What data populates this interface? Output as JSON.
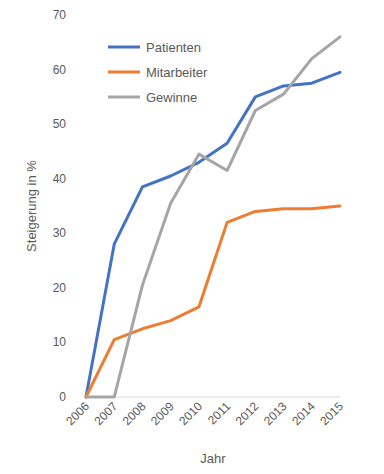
{
  "chart_data": {
    "type": "line",
    "x_label": "Jahr",
    "y_label": "Steigerung in %",
    "categories": [
      "2006",
      "2007",
      "2008",
      "2009",
      "2010",
      "2011",
      "2012",
      "2013",
      "2014",
      "2015"
    ],
    "series": [
      {
        "name": "Patienten",
        "color": "#4472c4",
        "values": [
          0,
          28,
          38.5,
          40.5,
          43,
          46.5,
          55,
          57,
          57.5,
          59.5
        ]
      },
      {
        "name": "Mitarbeiter",
        "color": "#ed7d31",
        "values": [
          0,
          10.5,
          12.5,
          14,
          16.5,
          32,
          34,
          34.5,
          34.5,
          35
        ]
      },
      {
        "name": "Gewinne",
        "color": "#a5a5a5",
        "values": [
          0,
          0,
          20.5,
          35.5,
          44.5,
          41.5,
          52.5,
          55.5,
          62,
          66
        ]
      }
    ],
    "ylim": [
      0,
      70
    ],
    "yticks": [
      0,
      10,
      20,
      30,
      40,
      50,
      60,
      70
    ],
    "grid": false,
    "legend": "upper left"
  }
}
